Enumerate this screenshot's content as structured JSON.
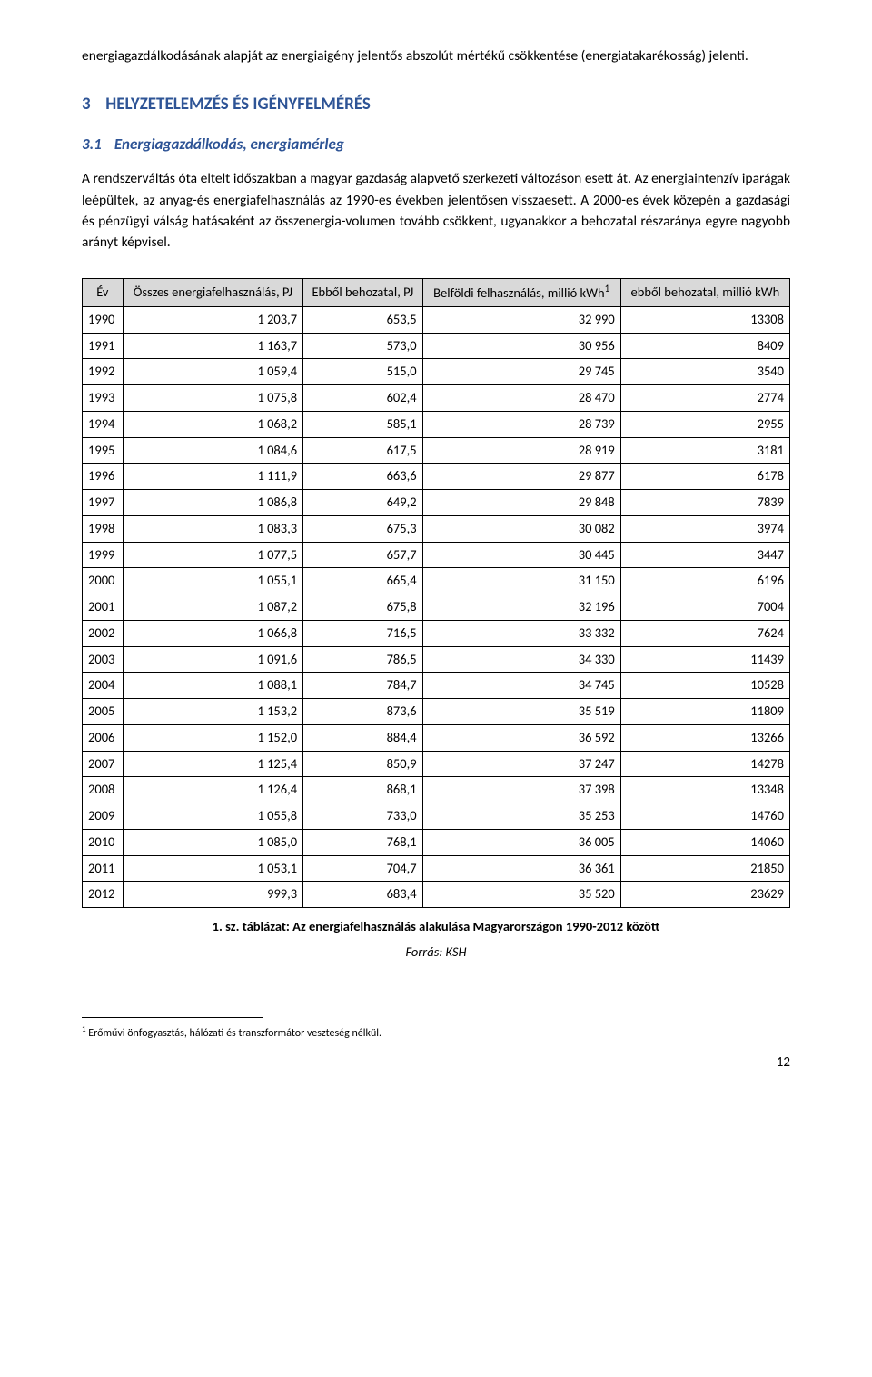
{
  "intro_paragraph": "energiagazdálkodásának alapját az energiaigény jelentős abszolút mértékű csökkentése (energiatakarékosság) jelenti.",
  "heading2": {
    "num": "3",
    "text": "HELYZETELEMZÉS ÉS IGÉNYFELMÉRÉS"
  },
  "heading3": {
    "num": "3.1",
    "text": "Energiagazdálkodás, energiamérleg"
  },
  "body_paragraph": "A rendszerváltás óta eltelt időszakban a magyar gazdaság alapvető szerkezeti változáson esett át. Az energiaintenzív iparágak leépültek, az anyag-és energiafelhasználás az 1990-es években jelentősen visszaesett. A 2000-es évek közepén a gazdasági és pénzügyi válság hatásaként az összenergia-volumen tovább csökkent, ugyanakkor a behozatal részaránya egyre nagyobb arányt képvisel.",
  "table": {
    "headers": {
      "year": "Év",
      "total": "Összes energiafelhasználás, PJ",
      "import": "Ebből behozatal, PJ",
      "domestic_pre": "Belföldi felhasználás, millió kWh",
      "domestic_sup": "1",
      "import_kwh": "ebből behozatal, millió kWh"
    },
    "rows": [
      [
        "1990",
        "1 203,7",
        "653,5",
        "32 990",
        "13308"
      ],
      [
        "1991",
        "1 163,7",
        "573,0",
        "30 956",
        "8409"
      ],
      [
        "1992",
        "1 059,4",
        "515,0",
        "29 745",
        "3540"
      ],
      [
        "1993",
        "1 075,8",
        "602,4",
        "28 470",
        "2774"
      ],
      [
        "1994",
        "1 068,2",
        "585,1",
        "28 739",
        "2955"
      ],
      [
        "1995",
        "1 084,6",
        "617,5",
        "28 919",
        "3181"
      ],
      [
        "1996",
        "1 111,9",
        "663,6",
        "29 877",
        "6178"
      ],
      [
        "1997",
        "1 086,8",
        "649,2",
        "29 848",
        "7839"
      ],
      [
        "1998",
        "1 083,3",
        "675,3",
        "30 082",
        "3974"
      ],
      [
        "1999",
        "1 077,5",
        "657,7",
        "30 445",
        "3447"
      ],
      [
        "2000",
        "1 055,1",
        "665,4",
        "31 150",
        "6196"
      ],
      [
        "2001",
        "1 087,2",
        "675,8",
        "32 196",
        "7004"
      ],
      [
        "2002",
        "1 066,8",
        "716,5",
        "33 332",
        "7624"
      ],
      [
        "2003",
        "1 091,6",
        "786,5",
        "34 330",
        "11439"
      ],
      [
        "2004",
        "1 088,1",
        "784,7",
        "34 745",
        "10528"
      ],
      [
        "2005",
        "1 153,2",
        "873,6",
        "35 519",
        "11809"
      ],
      [
        "2006",
        "1 152,0",
        "884,4",
        "36 592",
        "13266"
      ],
      [
        "2007",
        "1 125,4",
        "850,9",
        "37 247",
        "14278"
      ],
      [
        "2008",
        "1 126,4",
        "868,1",
        "37 398",
        "13348"
      ],
      [
        "2009",
        "1 055,8",
        "733,0",
        "35 253",
        "14760"
      ],
      [
        "2010",
        "1 085,0",
        "768,1",
        "36 005",
        "14060"
      ],
      [
        "2011",
        "1 053,1",
        "704,7",
        "36 361",
        "21850"
      ],
      [
        "2012",
        "999,3",
        "683,4",
        "35 520",
        "23629"
      ]
    ],
    "footnote_sup": "1"
  },
  "caption": "1. sz. táblázat: Az energiafelhasználás alakulása Magyarországon 1990-2012 között",
  "source_prefix": "Forrás: ",
  "source": "KSH",
  "footnote_num": "1",
  "footnote_text": " Erőművi önfogyasztás, hálózati és transzformátor veszteség nélkül.",
  "page_number": "12",
  "style": {
    "header_bg": "#d9d9d9",
    "heading_color": "#2e5496",
    "border_color": "#000000",
    "body_font_size_pt": 12,
    "table_font_size_pt": 11,
    "footnote_font_size_pt": 9
  }
}
